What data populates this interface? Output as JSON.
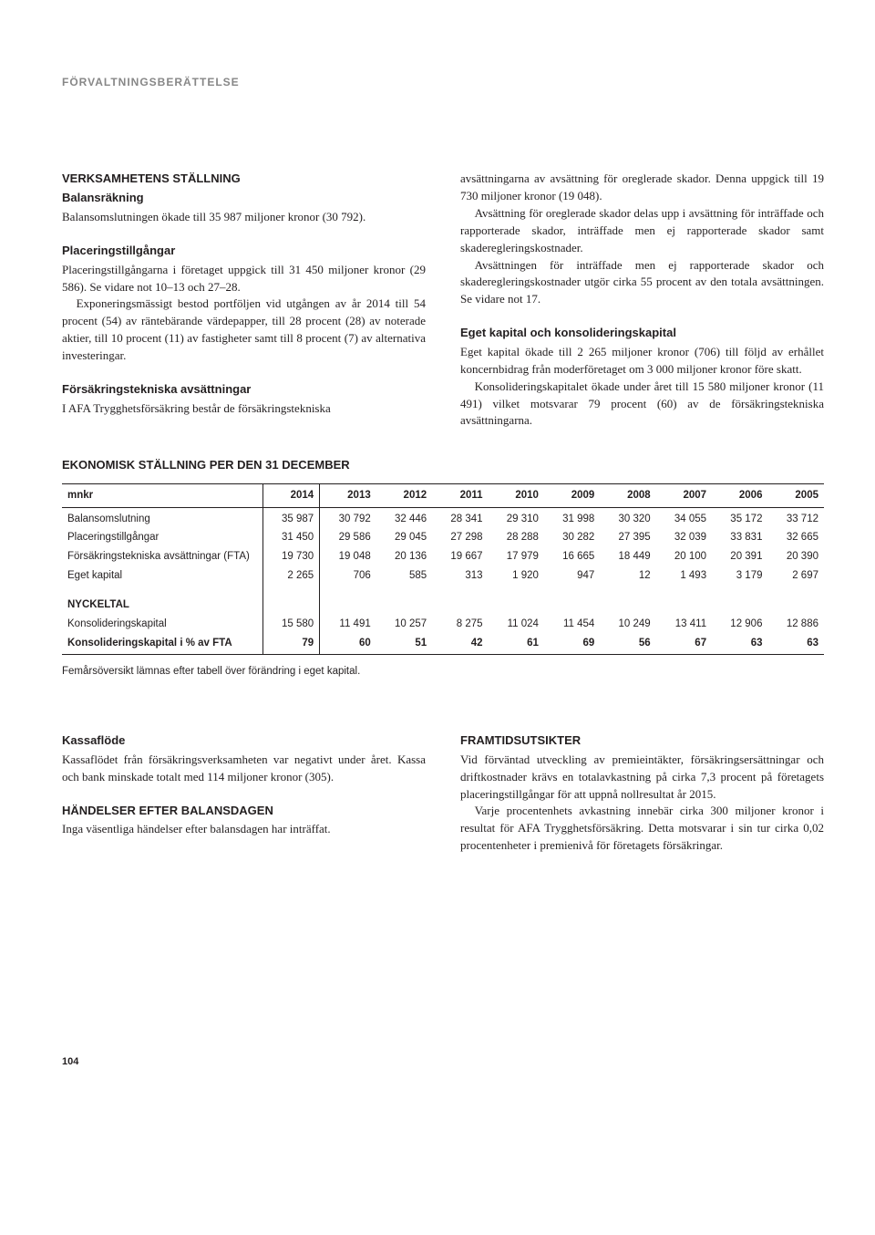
{
  "header": "FÖRVALTNINGSBERÄTTELSE",
  "left": {
    "h1": "VERKSAMHETENS STÄLLNING",
    "balans_h": "Balansräkning",
    "balans_p": "Balansomslutningen ökade till 35 987 miljoner kronor (30 792).",
    "plac_h": "Placeringstillgångar",
    "plac_p1": "Placeringstillgångarna i företaget uppgick till 31 450 miljoner kronor (29 586). Se vidare not 10–13 och 27–28.",
    "plac_p2": "Exponeringsmässigt bestod portföljen vid utgången av år 2014 till 54 procent (54) av räntebärande värdepapper, till 28 procent (28) av noterade aktier, till 10 procent (11) av fastigheter samt till 8 procent (7) av alternativa investeringar.",
    "fors_h": "Försäkringstekniska avsättningar",
    "fors_p": "I AFA Trygghetsförsäkring består de försäkringstekniska"
  },
  "right": {
    "p1": "avsättningarna av avsättning för oreglerade skador. Denna uppgick till 19 730 miljoner kronor (19 048).",
    "p2": "Avsättning för oreglerade skador delas upp i avsättning för inträffade och rapporterade skador, inträffade men ej rapporterade skador samt skaderegleringskostnader.",
    "p3": "Avsättningen för inträffade men ej rapporterade skador och skaderegleringskostnader utgör cirka 55 procent av den totala avsättningen. Se vidare not 17.",
    "eget_h": "Eget kapital och konsolideringskapital",
    "eget_p1": "Eget kapital ökade till 2 265 miljoner kronor (706) till följd av erhållet koncernbidrag från moderföretaget om 3 000 miljoner kronor före skatt.",
    "eget_p2": "Konsolideringskapitalet ökade under året till 15 580 miljoner kronor (11 491) vilket motsvarar 79 procent (60) av de försäkringstekniska avsättningarna."
  },
  "table": {
    "title": "EKONOMISK STÄLLNING PER DEN 31 DECEMBER",
    "col_label": "mnkr",
    "years": [
      "2014",
      "2013",
      "2012",
      "2011",
      "2010",
      "2009",
      "2008",
      "2007",
      "2006",
      "2005"
    ],
    "rows": [
      {
        "label": "Balansomslutning",
        "v": [
          "35 987",
          "30 792",
          "32 446",
          "28 341",
          "29 310",
          "31 998",
          "30 320",
          "34 055",
          "35 172",
          "33 712"
        ]
      },
      {
        "label": "Placeringstillgångar",
        "v": [
          "31 450",
          "29 586",
          "29 045",
          "27 298",
          "28 288",
          "30 282",
          "27 395",
          "32 039",
          "33 831",
          "32 665"
        ]
      },
      {
        "label": "Försäkringstekniska avsättningar (FTA)",
        "v": [
          "19 730",
          "19 048",
          "20 136",
          "19 667",
          "17 979",
          "16 665",
          "18 449",
          "20 100",
          "20 391",
          "20 390"
        ]
      },
      {
        "label": "Eget kapital",
        "v": [
          "2 265",
          "706",
          "585",
          "313",
          "1 920",
          "947",
          "12",
          "1 493",
          "3 179",
          "2 697"
        ]
      }
    ],
    "nyckeltal_label": "NYCKELTAL",
    "nyckeltal_rows": [
      {
        "label": "Konsolideringskapital",
        "v": [
          "15 580",
          "11 491",
          "10 257",
          "8 275",
          "11 024",
          "11 454",
          "10 249",
          "13 411",
          "12 906",
          "12 886"
        ]
      },
      {
        "label": "Konsolideringskapital i % av FTA",
        "v": [
          "79",
          "60",
          "51",
          "42",
          "61",
          "69",
          "56",
          "67",
          "63",
          "63"
        ],
        "bold": true
      }
    ],
    "note": "Femårsöversikt lämnas efter tabell över förändring i eget kapital."
  },
  "lower_left": {
    "kassa_h": "Kassaflöde",
    "kassa_p": "Kassaflödet från försäkringsverksamheten var negativt under året. Kassa och bank minskade totalt med 114 miljoner kronor (305).",
    "hand_h": "HÄNDELSER EFTER BALANSDAGEN",
    "hand_p": "Inga väsentliga händelser efter balansdagen har inträffat."
  },
  "lower_right": {
    "fram_h": "FRAMTIDSUTSIKTER",
    "fram_p1": "Vid förväntad utveckling av premieintäkter, försäkringsersättningar och driftkostnader krävs en totalavkastning på cirka 7,3 procent på företagets placeringstillgångar för att uppnå nollresultat år 2015.",
    "fram_p2": "Varje procentenhets avkastning innebär cirka 300 miljoner kronor i resultat för AFA Trygghetsförsäkring. Detta motsvarar i sin tur cirka 0,02 procentenheter i premienivå för företagets försäkringar."
  },
  "page_number": "104"
}
